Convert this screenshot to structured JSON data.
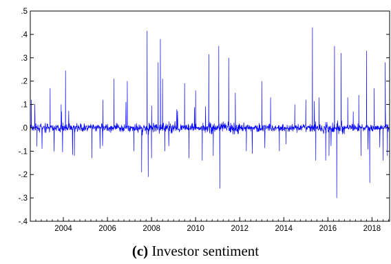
{
  "chart_data": {
    "type": "line",
    "title": "",
    "xlabel": "",
    "ylabel": "",
    "xlim": [
      2002.5,
      2018.8
    ],
    "ylim": [
      -0.4,
      0.5
    ],
    "y_ticks": [
      {
        "value": 0.5,
        "label": ".5"
      },
      {
        "value": 0.4,
        "label": ".4"
      },
      {
        "value": 0.3,
        "label": ".3"
      },
      {
        "value": 0.2,
        "label": ".2"
      },
      {
        "value": 0.1,
        "label": ".1"
      },
      {
        "value": 0.0,
        "label": ".0"
      },
      {
        "value": -0.1,
        "label": "-.1"
      },
      {
        "value": -0.2,
        "label": "-.2"
      },
      {
        "value": -0.3,
        "label": "-.3"
      },
      {
        "value": -0.4,
        "label": "-.4"
      }
    ],
    "x_ticks": [
      "2004",
      "2006",
      "2008",
      "2010",
      "2012",
      "2014",
      "2016",
      "2018"
    ],
    "x_tick_values": [
      2004,
      2006,
      2008,
      2010,
      2012,
      2014,
      2016,
      2018
    ],
    "grid": false,
    "series": [
      {
        "color": "#0000ff",
        "points": [
          [
            2002.55,
            0.12
          ],
          [
            2002.8,
            -0.08
          ],
          [
            2003.4,
            0.17
          ],
          [
            2003.9,
            0.1
          ],
          [
            2004.1,
            0.245
          ],
          [
            2004.5,
            -0.12
          ],
          [
            2005.3,
            -0.13
          ],
          [
            2005.8,
            0.12
          ],
          [
            2006.3,
            0.21
          ],
          [
            2006.9,
            0.2
          ],
          [
            2007.2,
            -0.1
          ],
          [
            2007.55,
            -0.19
          ],
          [
            2007.8,
            0.415
          ],
          [
            2007.85,
            -0.21
          ],
          [
            2008.0,
            -0.13
          ],
          [
            2008.3,
            0.28
          ],
          [
            2008.4,
            0.38
          ],
          [
            2008.5,
            0.21
          ],
          [
            2008.6,
            -0.1
          ],
          [
            2009.5,
            0.19
          ],
          [
            2009.7,
            -0.13
          ],
          [
            2010.0,
            0.16
          ],
          [
            2010.3,
            -0.14
          ],
          [
            2010.6,
            0.315
          ],
          [
            2010.8,
            -0.12
          ],
          [
            2011.05,
            0.35
          ],
          [
            2011.1,
            -0.26
          ],
          [
            2011.5,
            0.3
          ],
          [
            2011.8,
            0.15
          ],
          [
            2012.3,
            -0.1
          ],
          [
            2013.0,
            0.2
          ],
          [
            2013.4,
            0.13
          ],
          [
            2013.8,
            -0.1
          ],
          [
            2014.1,
            -0.07
          ],
          [
            2014.5,
            0.1
          ],
          [
            2015.0,
            0.12
          ],
          [
            2015.3,
            0.43
          ],
          [
            2015.45,
            -0.14
          ],
          [
            2015.6,
            0.13
          ],
          [
            2015.9,
            -0.14
          ],
          [
            2016.05,
            -0.12
          ],
          [
            2016.3,
            0.35
          ],
          [
            2016.4,
            -0.3
          ],
          [
            2016.6,
            0.32
          ],
          [
            2016.9,
            0.13
          ],
          [
            2017.15,
            0.07
          ],
          [
            2017.4,
            0.14
          ],
          [
            2017.5,
            -0.12
          ],
          [
            2017.75,
            0.33
          ],
          [
            2017.9,
            -0.235
          ],
          [
            2018.1,
            0.17
          ],
          [
            2018.5,
            -0.14
          ],
          [
            2018.6,
            0.28
          ],
          [
            2018.7,
            -0.12
          ]
        ]
      }
    ],
    "caption_prefix": "(c)",
    "caption_text": " Investor sentiment"
  }
}
